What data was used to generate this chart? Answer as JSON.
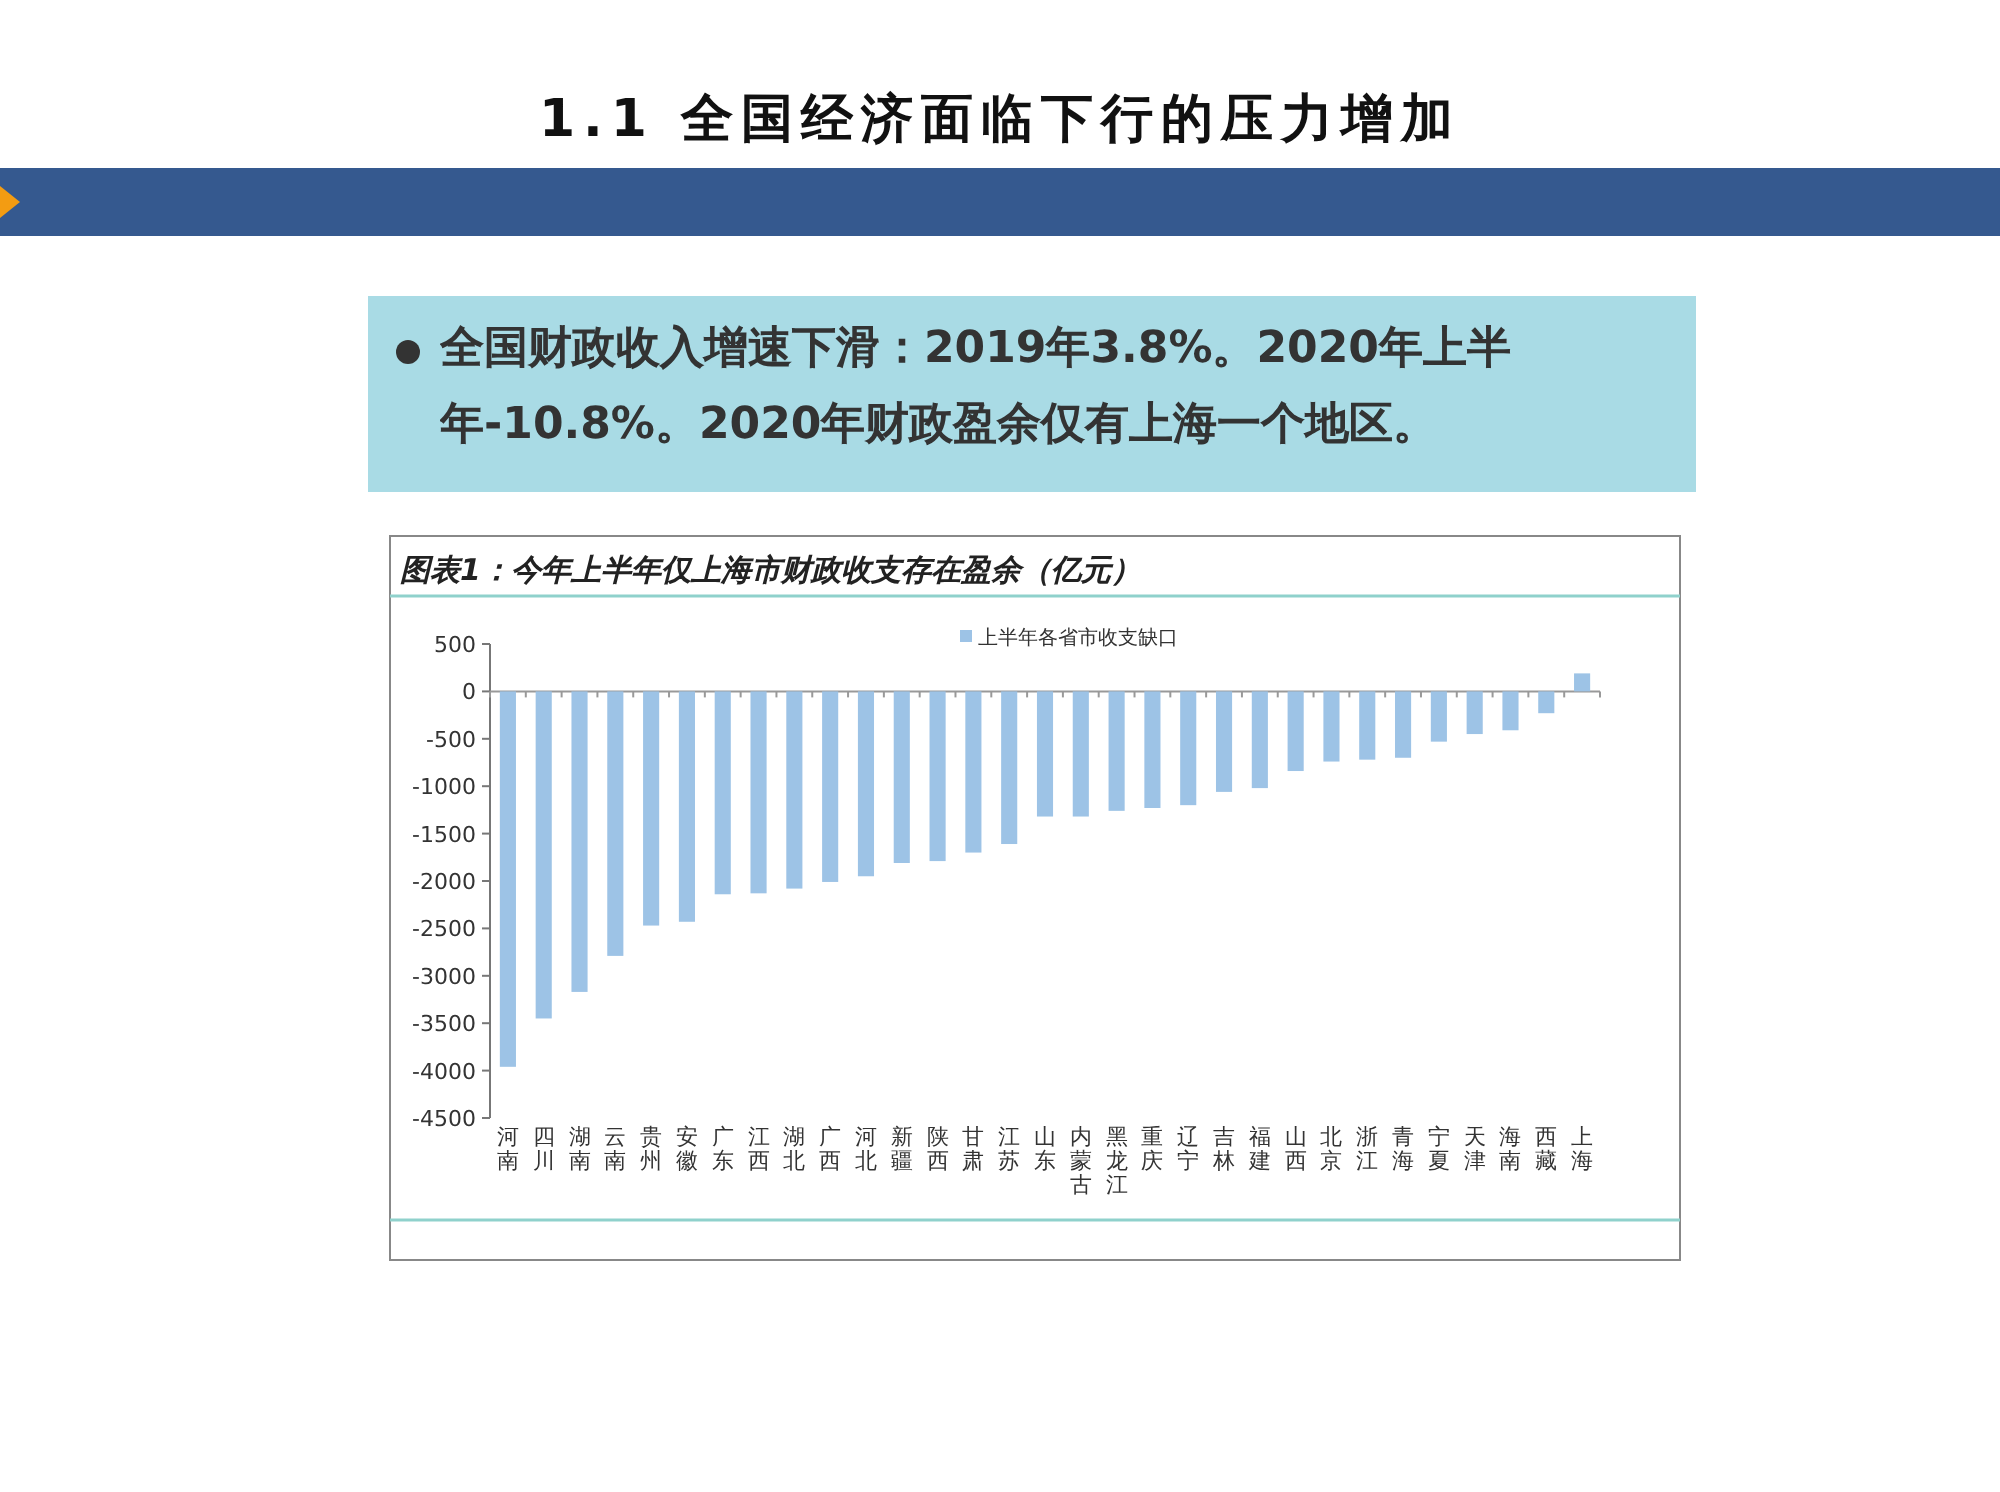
{
  "chart_data": {
    "type": "bar",
    "title": "1.1 全国经济面临下行的压力增加",
    "subtitle": "图表1：今年上半年仅上海市财政收支存在盈余（亿元）",
    "annotations": [
      "全国财政收入增速下滑：2019年3.8%。2020年上半年-10.8%。2020年财政盈余仅有上海一个地区。"
    ],
    "categories": [
      "河南",
      "四川",
      "湖南",
      "云南",
      "贵州",
      "安徽",
      "广东",
      "江西",
      "湖北",
      "广西",
      "河北",
      "新疆",
      "陕西",
      "甘肃",
      "江苏",
      "山东",
      "内蒙古",
      "黑龙江",
      "重庆",
      "辽宁",
      "吉林",
      "福建",
      "山西",
      "北京",
      "浙江",
      "青海",
      "宁夏",
      "天津",
      "海南",
      "西藏",
      "上海"
    ],
    "series": [
      {
        "name": "上半年各省市收支缺口",
        "color": "#9dc3e6",
        "values": [
          -3960,
          -3450,
          -3170,
          -2790,
          -2470,
          -2430,
          -2140,
          -2130,
          -2080,
          -2010,
          -1950,
          -1810,
          -1790,
          -1700,
          -1610,
          -1320,
          -1320,
          -1260,
          -1230,
          -1200,
          -1060,
          -1020,
          -840,
          -740,
          -720,
          -700,
          -530,
          -450,
          -410,
          -230,
          190
        ]
      }
    ],
    "ylim": [
      -4500,
      500
    ],
    "yticks": [
      500,
      0,
      -500,
      -1000,
      -1500,
      -2000,
      -2500,
      -3000,
      -3500,
      -4000,
      -4500
    ],
    "legend": "top"
  }
}
